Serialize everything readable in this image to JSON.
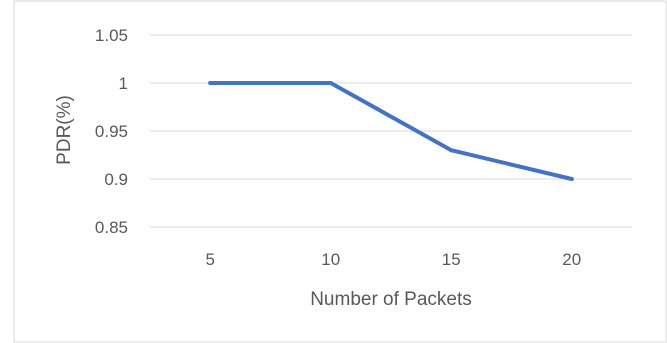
{
  "chart_data": {
    "type": "line",
    "title": "",
    "xlabel": "Number of Packets",
    "ylabel": "PDR(%)",
    "categories": [
      "5",
      "10",
      "15",
      "20"
    ],
    "series": [
      {
        "values": [
          1.0,
          1.0,
          0.93,
          0.9
        ],
        "color": "#4472c4"
      }
    ],
    "ylim": [
      0.85,
      1.05
    ],
    "yticks": [
      "0.85",
      "0.9",
      "0.95",
      "1",
      "1.05"
    ],
    "grid": true,
    "legend": "none"
  }
}
